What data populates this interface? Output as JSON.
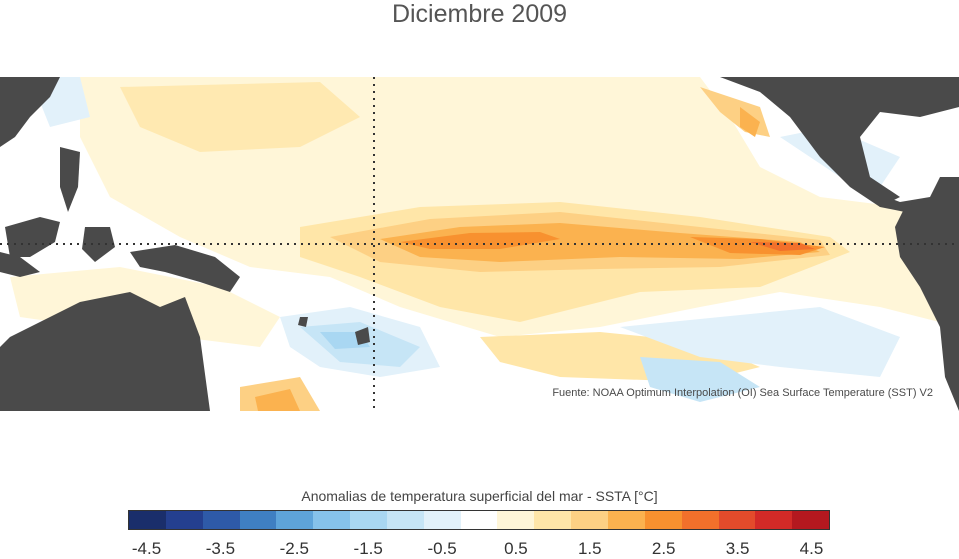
{
  "title": "Diciembre 2009",
  "source": "Fuente: NOAA Optimum Interpolation (OI) Sea Surface Temperature (SST) V2",
  "colorbar": {
    "title": "Anomalias de temperatura superficial del mar - SSTA  [°C]",
    "colors": [
      "#1a2e6b",
      "#243f8f",
      "#2e5aa8",
      "#3f7fc2",
      "#5ea4da",
      "#86c2ea",
      "#a9d7f2",
      "#c6e5f6",
      "#e2f1fa",
      "#ffffff",
      "#fff6d8",
      "#ffe6a8",
      "#fdd084",
      "#fbb24f",
      "#f8912f",
      "#f2702b",
      "#e34b2b",
      "#d32a27",
      "#b4181f"
    ],
    "ticks": [
      "-4.5",
      "-3.5",
      "-2.5",
      "-1.5",
      "-0.5",
      "0.5",
      "1.5",
      "2.5",
      "3.5",
      "4.5"
    ]
  },
  "map": {
    "land_color": "#4a4a4a",
    "regions": [
      "Indonesia",
      "Australia",
      "Papua New Guinea",
      "North America",
      "Central America",
      "South America"
    ],
    "reference_lines": [
      "equator",
      "date line"
    ]
  }
}
